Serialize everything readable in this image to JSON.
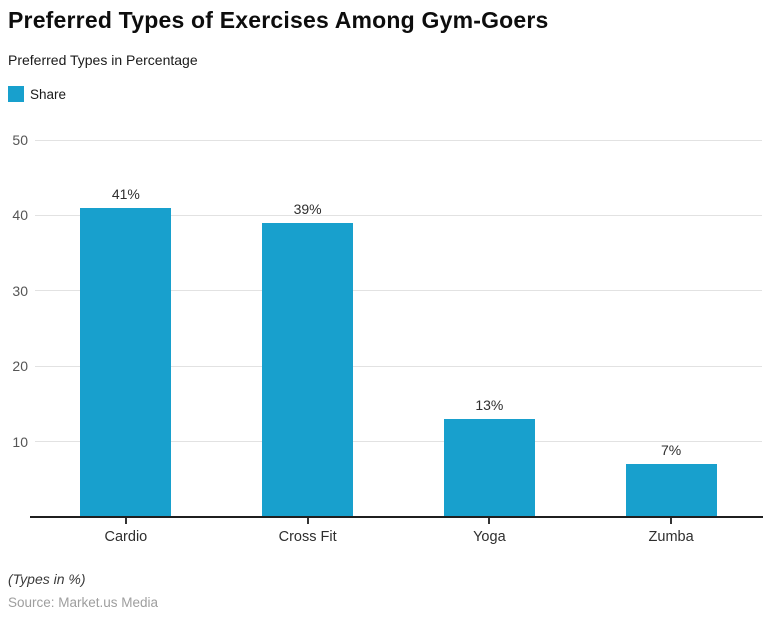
{
  "header": {
    "title": "Preferred Types of Exercises Among Gym-Goers",
    "subtitle": "Preferred Types in Percentage"
  },
  "legend": {
    "label": "Share"
  },
  "chart_data": {
    "type": "bar",
    "title": "Preferred Types of Exercises Among Gym-Goers",
    "subtitle": "Preferred Types in Percentage",
    "categories": [
      "Cardio",
      "Cross Fit",
      "Yoga",
      "Zumba"
    ],
    "series": [
      {
        "name": "Share",
        "values": [
          41,
          39,
          13,
          7
        ]
      }
    ],
    "value_labels": [
      "41%",
      "39%",
      "13%",
      "7%"
    ],
    "xlabel": "",
    "ylabel": "",
    "ylim": [
      0,
      50
    ],
    "yticks": [
      10,
      20,
      30,
      40,
      50
    ],
    "grid": true,
    "legend_position": "top-left"
  },
  "footer": {
    "note": "(Types in %)",
    "source": "Source: Market.us Media"
  },
  "colors": {
    "bar": "#18A0CD",
    "gridline": "#e2e2e2",
    "axis_line": "#1f1f1f",
    "tick_mark": "#333333",
    "y_label": "#555555",
    "value_label": "#2e2e2e"
  }
}
